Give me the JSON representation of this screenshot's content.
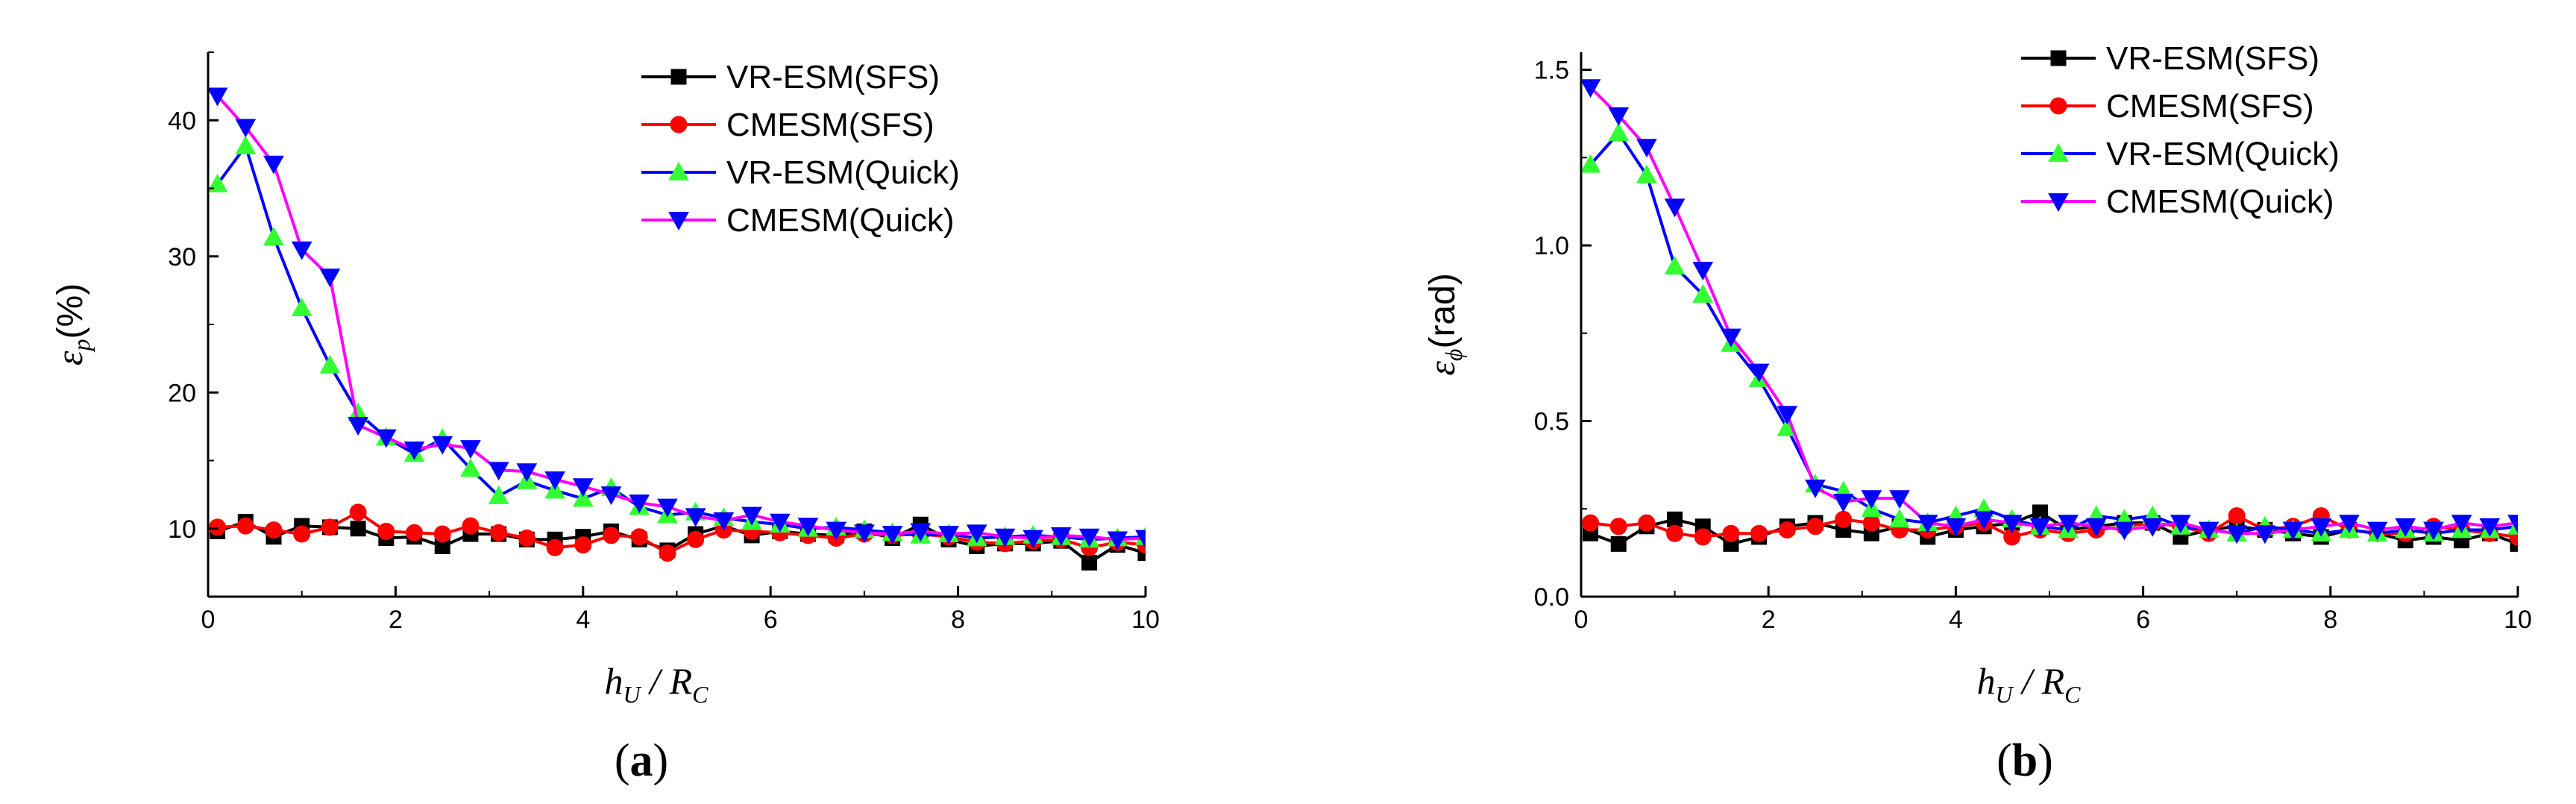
{
  "chart_data": [
    {
      "type": "line",
      "panel": "a",
      "caption": {
        "open": "(",
        "letter": "a",
        "close": ")"
      },
      "xlabel": {
        "main": "h",
        "sub": "U",
        "slash": " / ",
        "main2": "R",
        "sub2": "C"
      },
      "ylabel": {
        "main": "ε",
        "sub": "p",
        "unit": "(%)"
      },
      "xlim": [
        0,
        10
      ],
      "ylim": [
        5,
        45
      ],
      "xticks": [
        "0",
        "2",
        "4",
        "6",
        "8",
        "10"
      ],
      "xtick_values": [
        0,
        2,
        4,
        6,
        8,
        10
      ],
      "yticks": [
        "10",
        "20",
        "30",
        "40"
      ],
      "ytick_values": [
        10,
        20,
        30,
        40
      ],
      "legend": {
        "placement": "top-right"
      },
      "series": [
        {
          "name": "VR-ESM(SFS)",
          "color": "#000000",
          "marker": "square",
          "x": [
            0.1,
            0.4,
            0.7,
            1.0,
            1.3,
            1.6,
            1.9,
            2.2,
            2.5,
            2.8,
            3.1,
            3.4,
            3.7,
            4.0,
            4.3,
            4.6,
            4.9,
            5.2,
            5.5,
            5.8,
            6.1,
            6.4,
            6.7,
            7.0,
            7.3,
            7.6,
            7.9,
            8.2,
            8.5,
            8.8,
            9.1,
            9.4,
            9.7,
            10.0
          ],
          "y": [
            9.8,
            10.5,
            9.4,
            10.2,
            10.1,
            10.0,
            9.3,
            9.4,
            8.7,
            9.6,
            9.6,
            9.2,
            9.2,
            9.4,
            9.8,
            9.2,
            8.4,
            9.6,
            10.2,
            9.5,
            9.8,
            9.6,
            9.5,
            9.8,
            9.3,
            10.3,
            9.2,
            8.7,
            8.9,
            8.9,
            9.1,
            7.5,
            8.8,
            8.2
          ]
        },
        {
          "name": "CMESM(SFS)",
          "color": "#ff0000",
          "marker": "circle",
          "x": [
            0.1,
            0.4,
            0.7,
            1.0,
            1.3,
            1.6,
            1.9,
            2.2,
            2.5,
            2.8,
            3.1,
            3.4,
            3.7,
            4.0,
            4.3,
            4.6,
            4.9,
            5.2,
            5.5,
            5.8,
            6.1,
            6.4,
            6.7,
            7.0,
            7.3,
            7.6,
            7.9,
            8.2,
            8.5,
            8.8,
            9.1,
            9.4,
            9.7,
            10.0
          ],
          "y": [
            10.1,
            10.2,
            9.9,
            9.6,
            10.1,
            11.2,
            9.8,
            9.7,
            9.6,
            10.2,
            9.7,
            9.3,
            8.6,
            8.8,
            9.5,
            9.4,
            8.2,
            9.2,
            9.9,
            9.8,
            9.7,
            9.5,
            9.3,
            9.6,
            9.5,
            9.6,
            9.4,
            9.0,
            8.9,
            9.1,
            9.2,
            8.6,
            9.0,
            8.8
          ]
        },
        {
          "name": "VR-ESM(Quick)",
          "color": "#0000ff",
          "marker": "triangle-up",
          "marker_fill": "#33ff33",
          "x": [
            0.1,
            0.4,
            0.7,
            1.0,
            1.3,
            1.6,
            1.9,
            2.2,
            2.5,
            2.8,
            3.1,
            3.4,
            3.7,
            4.0,
            4.3,
            4.6,
            4.9,
            5.2,
            5.5,
            5.8,
            6.1,
            6.4,
            6.7,
            7.0,
            7.3,
            7.6,
            7.9,
            8.2,
            8.5,
            8.8,
            9.1,
            9.4,
            9.7,
            10.0
          ],
          "y": [
            35.3,
            38.1,
            31.4,
            26.2,
            22.0,
            18.5,
            16.7,
            15.5,
            16.6,
            14.4,
            12.4,
            13.5,
            12.8,
            12.2,
            13.0,
            11.6,
            11.0,
            11.2,
            10.8,
            10.5,
            10.3,
            10.0,
            10.1,
            9.9,
            9.7,
            9.5,
            9.6,
            9.3,
            9.4,
            9.5,
            9.4,
            9.2,
            9.3,
            9.4
          ]
        },
        {
          "name": "CMESM(Quick)",
          "color": "#ff00ff",
          "line_color": "#ff00ff",
          "marker": "triangle-down",
          "marker_fill": "#0000ff",
          "x": [
            0.1,
            0.4,
            0.7,
            1.0,
            1.3,
            1.6,
            1.9,
            2.2,
            2.5,
            2.8,
            3.1,
            3.4,
            3.7,
            4.0,
            4.3,
            4.6,
            4.9,
            5.2,
            5.5,
            5.8,
            6.1,
            6.4,
            6.7,
            7.0,
            7.3,
            7.6,
            7.9,
            8.2,
            8.5,
            8.8,
            9.1,
            9.4,
            9.7,
            10.0
          ],
          "y": [
            41.8,
            39.5,
            36.8,
            30.5,
            28.5,
            17.6,
            16.7,
            15.8,
            16.2,
            15.9,
            14.3,
            14.2,
            13.6,
            13.1,
            12.5,
            11.9,
            11.6,
            10.9,
            10.6,
            11.0,
            10.5,
            10.2,
            9.9,
            9.7,
            9.6,
            9.8,
            9.6,
            9.7,
            9.4,
            9.3,
            9.5,
            9.4,
            9.2,
            9.3
          ]
        }
      ]
    },
    {
      "type": "line",
      "panel": "b",
      "caption": {
        "open": "(",
        "letter": "b",
        "close": ")"
      },
      "xlabel": {
        "main": "h",
        "sub": "U",
        "slash": " / ",
        "main2": "R",
        "sub2": "C"
      },
      "ylabel": {
        "main": "ε",
        "sub": "ϕ",
        "unit": "(rad)"
      },
      "xlim": [
        0,
        10
      ],
      "ylim": [
        0.0,
        1.55
      ],
      "xticks": [
        "0",
        "2",
        "4",
        "6",
        "8",
        "10"
      ],
      "xtick_values": [
        0,
        2,
        4,
        6,
        8,
        10
      ],
      "yticks": [
        "0.0",
        "0.5",
        "1.0",
        "1.5"
      ],
      "ytick_values": [
        0.0,
        0.5,
        1.0,
        1.5
      ],
      "legend": {
        "placement": "top-right"
      },
      "series": [
        {
          "name": "VR-ESM(SFS)",
          "color": "#000000",
          "marker": "square",
          "x": [
            0.1,
            0.4,
            0.7,
            1.0,
            1.3,
            1.6,
            1.9,
            2.2,
            2.5,
            2.8,
            3.1,
            3.4,
            3.7,
            4.0,
            4.3,
            4.6,
            4.9,
            5.2,
            5.5,
            5.8,
            6.1,
            6.4,
            6.7,
            7.0,
            7.3,
            7.6,
            7.9,
            8.2,
            8.5,
            8.8,
            9.1,
            9.4,
            9.7,
            10.0
          ],
          "y": [
            0.18,
            0.15,
            0.2,
            0.22,
            0.2,
            0.15,
            0.17,
            0.2,
            0.21,
            0.19,
            0.18,
            0.2,
            0.17,
            0.19,
            0.2,
            0.21,
            0.24,
            0.19,
            0.2,
            0.21,
            0.21,
            0.17,
            0.19,
            0.2,
            0.19,
            0.18,
            0.17,
            0.19,
            0.18,
            0.16,
            0.17,
            0.16,
            0.18,
            0.15
          ]
        },
        {
          "name": "CMESM(SFS)",
          "color": "#ff0000",
          "marker": "circle",
          "x": [
            0.1,
            0.4,
            0.7,
            1.0,
            1.3,
            1.6,
            1.9,
            2.2,
            2.5,
            2.8,
            3.1,
            3.4,
            3.7,
            4.0,
            4.3,
            4.6,
            4.9,
            5.2,
            5.5,
            5.8,
            6.1,
            6.4,
            6.7,
            7.0,
            7.3,
            7.6,
            7.9,
            8.2,
            8.5,
            8.8,
            9.1,
            9.4,
            9.7,
            10.0
          ],
          "y": [
            0.21,
            0.2,
            0.21,
            0.18,
            0.17,
            0.18,
            0.18,
            0.19,
            0.2,
            0.22,
            0.21,
            0.19,
            0.19,
            0.2,
            0.21,
            0.17,
            0.19,
            0.18,
            0.19,
            0.2,
            0.21,
            0.2,
            0.18,
            0.23,
            0.19,
            0.2,
            0.23,
            0.19,
            0.18,
            0.18,
            0.2,
            0.19,
            0.18,
            0.17
          ]
        },
        {
          "name": "VR-ESM(Quick)",
          "color": "#0000ff",
          "marker": "triangle-up",
          "marker_fill": "#33ff33",
          "x": [
            0.1,
            0.4,
            0.7,
            1.0,
            1.3,
            1.6,
            1.9,
            2.2,
            2.5,
            2.8,
            3.1,
            3.4,
            3.7,
            4.0,
            4.3,
            4.6,
            4.9,
            5.2,
            5.5,
            5.8,
            6.1,
            6.4,
            6.7,
            7.0,
            7.3,
            7.6,
            7.9,
            8.2,
            8.5,
            8.8,
            9.1,
            9.4,
            9.7,
            10.0
          ],
          "y": [
            1.23,
            1.32,
            1.2,
            0.94,
            0.86,
            0.72,
            0.62,
            0.48,
            0.32,
            0.3,
            0.25,
            0.22,
            0.21,
            0.23,
            0.25,
            0.22,
            0.2,
            0.19,
            0.23,
            0.22,
            0.23,
            0.2,
            0.19,
            0.18,
            0.2,
            0.19,
            0.18,
            0.19,
            0.18,
            0.19,
            0.18,
            0.19,
            0.19,
            0.2
          ]
        },
        {
          "name": "CMESM(Quick)",
          "color": "#ff00ff",
          "line_color": "#ff00ff",
          "marker": "triangle-down",
          "marker_fill": "#0000ff",
          "x": [
            0.1,
            0.4,
            0.7,
            1.0,
            1.3,
            1.6,
            1.9,
            2.2,
            2.5,
            2.8,
            3.1,
            3.4,
            3.7,
            4.0,
            4.3,
            4.6,
            4.9,
            5.2,
            5.5,
            5.8,
            6.1,
            6.4,
            6.7,
            7.0,
            7.3,
            7.6,
            7.9,
            8.2,
            8.5,
            8.8,
            9.1,
            9.4,
            9.7,
            10.0
          ],
          "y": [
            1.45,
            1.37,
            1.28,
            1.11,
            0.93,
            0.74,
            0.64,
            0.52,
            0.31,
            0.27,
            0.28,
            0.28,
            0.21,
            0.2,
            0.22,
            0.21,
            0.2,
            0.21,
            0.2,
            0.19,
            0.2,
            0.21,
            0.19,
            0.18,
            0.18,
            0.19,
            0.2,
            0.21,
            0.19,
            0.2,
            0.19,
            0.21,
            0.2,
            0.21
          ]
        }
      ]
    }
  ]
}
